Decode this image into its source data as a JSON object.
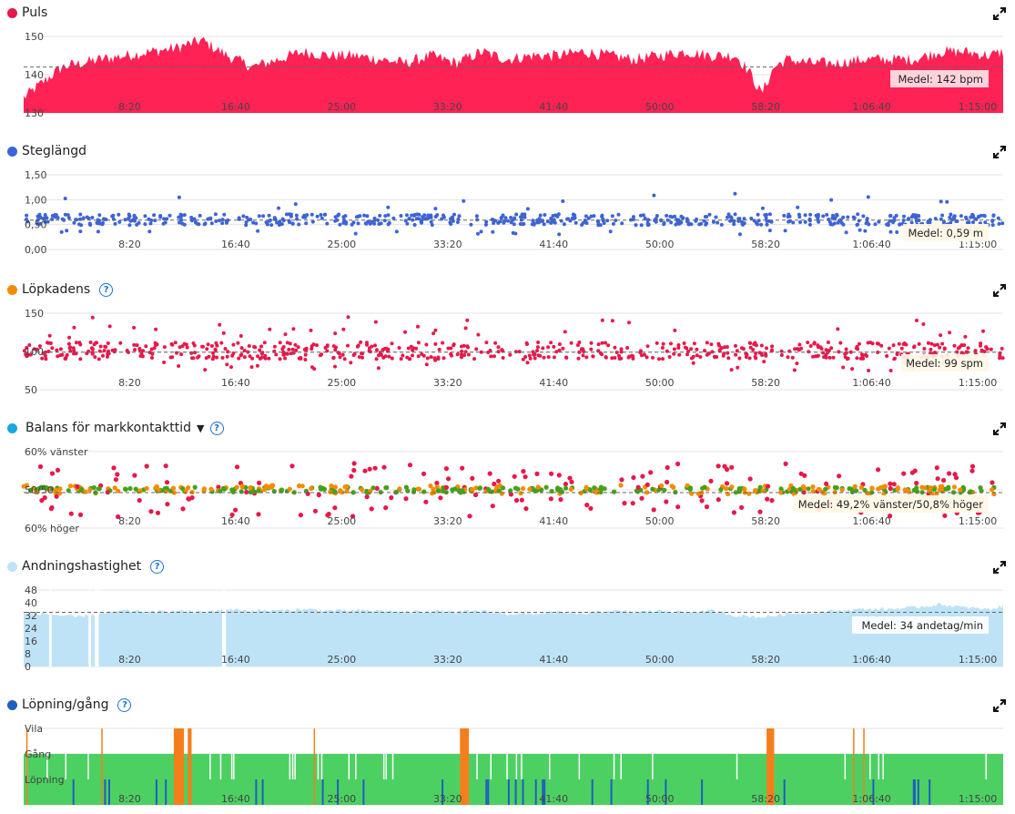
{
  "x_ticks": [
    "8:20",
    "16:40",
    "25:00",
    "33:20",
    "41:40",
    "50:00",
    "58:20",
    "1:06:40",
    "1:15:00"
  ],
  "panels": {
    "puls": {
      "title": "Puls",
      "color": "#e8184a",
      "mean_label": "Medel: 142 bpm"
    },
    "steglangd": {
      "title": "Steglängd",
      "color": "#3c64d8",
      "mean_label": "Medel: 0,59 m"
    },
    "lopkadens": {
      "title": "Löpkadens",
      "color": "#f28c00",
      "mean_label": "Medel: 99 spm"
    },
    "balans": {
      "title": "Balans för markkontakttid",
      "color": "#1aa6e0",
      "mean_label": "Medel: 49,2% vänster/50,8% höger"
    },
    "andning": {
      "title": "Andningshastighet",
      "color": "#bfe3f6",
      "mean_label": "Medel: 34 andetag/min"
    },
    "lopning": {
      "title": "Löpning/gång",
      "color": "#1f5fbf"
    }
  },
  "chart_data": [
    {
      "type": "area",
      "title": "Puls",
      "unit": "bpm",
      "ylim": [
        130,
        150
      ],
      "yticks": [
        "130",
        "140",
        "150"
      ],
      "mean": 142,
      "x_range": [
        "0:00",
        "1:17:00"
      ],
      "series": [
        {
          "name": "Puls",
          "color": "#ff2255",
          "x_min": [
            0,
            3,
            6,
            8,
            10,
            12,
            14,
            16,
            18,
            20,
            22,
            24,
            26,
            28,
            30,
            32,
            34,
            36,
            38,
            40,
            42,
            44,
            46,
            48,
            50,
            52,
            54,
            56,
            57,
            58,
            59,
            60,
            62,
            64,
            66,
            68,
            70,
            72,
            74,
            76,
            77
          ],
          "values": [
            134,
            142,
            144,
            145,
            146,
            147,
            149,
            145,
            142,
            144,
            146,
            145,
            145,
            144,
            143,
            145,
            143,
            146,
            144,
            145,
            145,
            146,
            145,
            144,
            145,
            146,
            145,
            145,
            141,
            135,
            142,
            144,
            143,
            143,
            144,
            144,
            144,
            146,
            146,
            145,
            146
          ]
        }
      ]
    },
    {
      "type": "scatter",
      "title": "Steglängd",
      "unit": "m",
      "ylim": [
        0,
        1.5
      ],
      "yticks": [
        "0,00",
        "0,50",
        "1,00",
        "1,50"
      ],
      "mean": 0.59,
      "x_range": [
        "0:00",
        "1:17:00"
      ],
      "series": [
        {
          "name": "Steglängd",
          "color": "#3c64d8",
          "typical": 0.6
        }
      ]
    },
    {
      "type": "scatter",
      "title": "Löpkadens",
      "unit": "spm",
      "ylim": [
        50,
        150
      ],
      "yticks": [
        "50",
        "100",
        "150"
      ],
      "mean": 99,
      "x_range": [
        "0:00",
        "1:17:00"
      ],
      "series": [
        {
          "name": "Löpkadens",
          "color": "#e8184a",
          "typical": 101
        }
      ]
    },
    {
      "type": "scatter",
      "title": "Balans för markkontakttid",
      "ylim": [
        "60% höger",
        "60% vänster"
      ],
      "yticks": [
        "60% vänster",
        "50/50",
        "60% höger"
      ],
      "mean": "49,2% vänster/50,8% höger",
      "x_range": [
        "0:00",
        "1:17:00"
      ],
      "series": [
        {
          "name": "green",
          "color": "#45a11c"
        },
        {
          "name": "orange",
          "color": "#f28c00"
        },
        {
          "name": "red",
          "color": "#e8184a"
        }
      ]
    },
    {
      "type": "area",
      "title": "Andningshastighet",
      "unit": "andetag/min",
      "ylim": [
        0,
        48
      ],
      "yticks": [
        "0",
        "8",
        "16",
        "24",
        "32",
        "40",
        "48"
      ],
      "mean": 34,
      "x_range": [
        "0:00",
        "1:17:00"
      ],
      "series": [
        {
          "name": "Andningshastighet",
          "color": "#bfe3f6",
          "x_min": [
            0,
            2,
            4,
            6,
            8,
            10,
            12,
            14,
            16,
            18,
            20,
            22,
            24,
            26,
            28,
            30,
            32,
            34,
            36,
            38,
            40,
            42,
            44,
            46,
            48,
            50,
            52,
            54,
            56,
            58,
            60,
            62,
            64,
            66,
            68,
            70,
            72,
            74,
            76,
            77
          ],
          "values": [
            33,
            33,
            31,
            33,
            35,
            34,
            35,
            34,
            36,
            35,
            35,
            36,
            35,
            35,
            35,
            34,
            35,
            34,
            35,
            33,
            33,
            34,
            33,
            35,
            34,
            35,
            34,
            35,
            32,
            31,
            33,
            34,
            35,
            36,
            36,
            37,
            39,
            37,
            36,
            38
          ]
        }
      ]
    },
    {
      "type": "bar",
      "title": "Löpning/gång",
      "categories": [
        "Vila",
        "Gång",
        "Löpning"
      ],
      "x_range": [
        "0:00",
        "1:17:00"
      ],
      "dominant": "Gång",
      "vila_periods_min": [
        [
          11.8,
          12.6
        ],
        [
          12.9,
          13.2
        ],
        [
          34.3,
          35.0
        ],
        [
          58.4,
          59.0
        ]
      ]
    }
  ]
}
